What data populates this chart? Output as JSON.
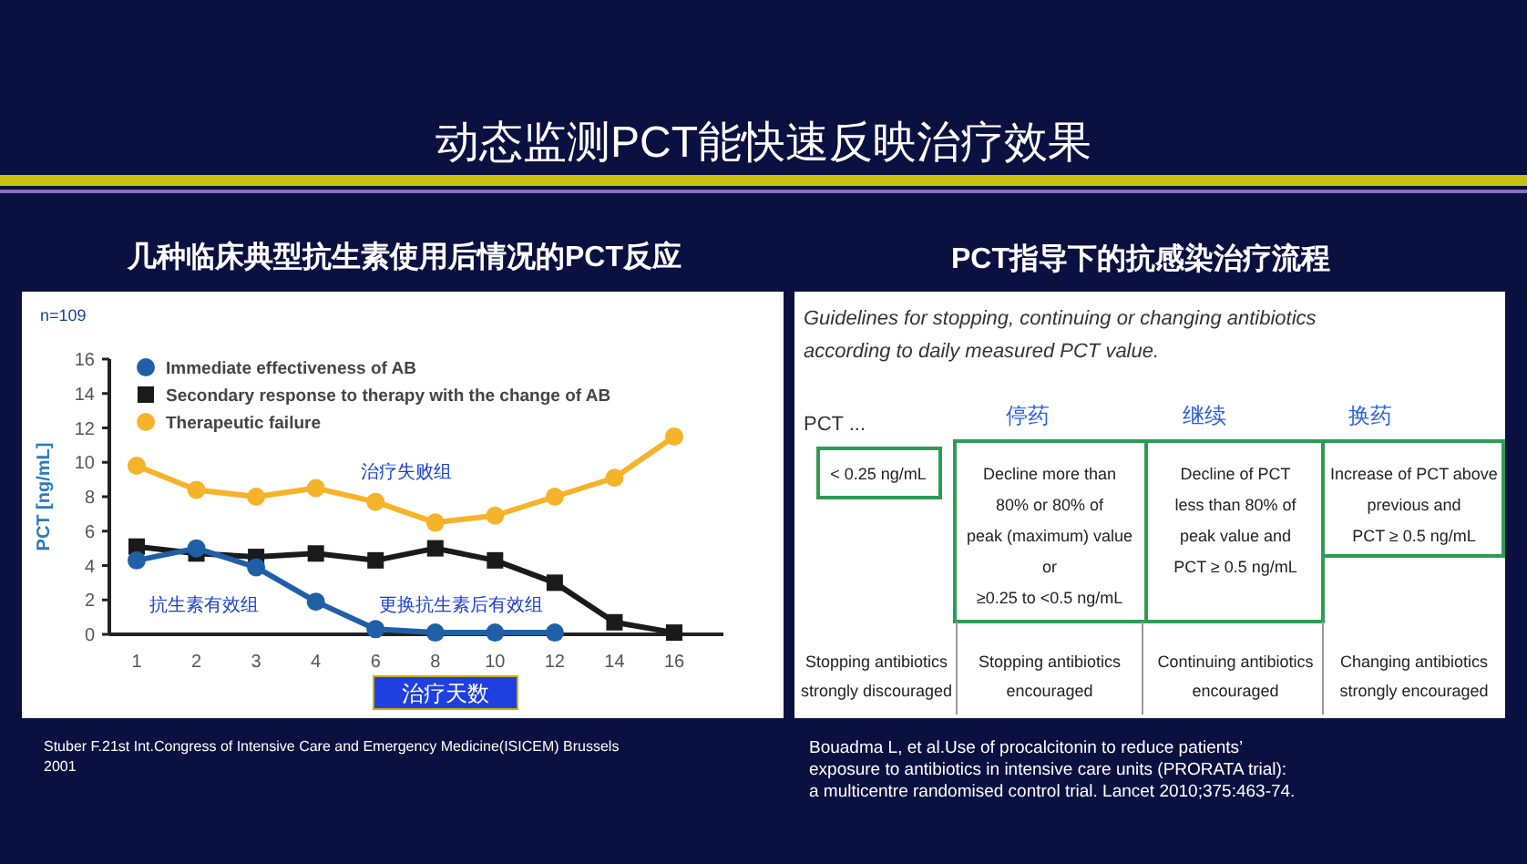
{
  "chart_data": [
    {
      "type": "line",
      "title": "动态监测PCT能快速反映治疗效果",
      "subtitle": "几种临床典型抗生素使用后情况的PCT反应",
      "xlabel": "治疗天数",
      "ylabel": "PCT [ng/mL]",
      "categories": [
        "1",
        "2",
        "3",
        "4",
        "6",
        "8",
        "10",
        "12",
        "14",
        "16"
      ],
      "ylim": [
        0,
        16
      ],
      "yticks": [
        0,
        2,
        4,
        6,
        8,
        10,
        12,
        14,
        16
      ],
      "grid": false,
      "legend": "top left",
      "line_style": "solid",
      "series": [
        {
          "name": "Immediate effectiveness of AB",
          "color": "#1f5fa6",
          "marker": "circle",
          "values": [
            4.3,
            5.0,
            3.9,
            1.9,
            0.3,
            0.1,
            0.1,
            0.1,
            null,
            null
          ]
        },
        {
          "name": "Secondary response to therapy with the change of AB",
          "color": "#1a1a1a",
          "marker": "square",
          "values": [
            5.1,
            4.7,
            4.5,
            4.7,
            4.3,
            5.0,
            4.3,
            3.0,
            0.7,
            0.1
          ]
        },
        {
          "name": "Therapeutic failure",
          "color": "#f5b32a",
          "marker": "circle",
          "values": [
            9.8,
            8.4,
            8.0,
            8.5,
            7.7,
            6.5,
            6.9,
            8.0,
            9.1,
            11.5
          ]
        }
      ],
      "annotations": [
        "n=109",
        "治疗失败组",
        "抗生素有效组",
        "更换抗生素后有效组",
        "Stuber F.21st Int.Congress of Intensive Care and Emergency Medicine(ISICEM) Brussels\n2001"
      ]
    },
    {
      "type": "other",
      "title": "PCT指导下的抗感染治疗流程",
      "annotations": [
        "Guidelines for stopping, continuing or changing antibiotics\naccording to daily measured PCT value.",
        "PCT ...",
        "停药",
        "继续",
        "换药",
        "< 0.25 ng/mL",
        "Decline more than\n80% or 80% of\npeak (maximum) value\nor\n≥0.25 to <0.5 ng/mL",
        "Decline of PCT\nless than 80% of\npeak value and\nPCT ≥ 0.5 ng/mL",
        "Increase of PCT above\nprevious and\nPCT ≥ 0.5 ng/mL",
        "Stopping antibiotics\nstrongly discouraged",
        "Stopping antibiotics\nencouraged",
        "Continuing antibiotics\nencouraged",
        "Changing antibiotics\nstrongly encouraged",
        "Bouadma L, et al.Use of procalcitonin to reduce patients’\nexposure to antibiotics in intensive care units (PRORATA trial):\na multicentre randomised control trial. Lancet 2010;375:463-74."
      ]
    }
  ]
}
